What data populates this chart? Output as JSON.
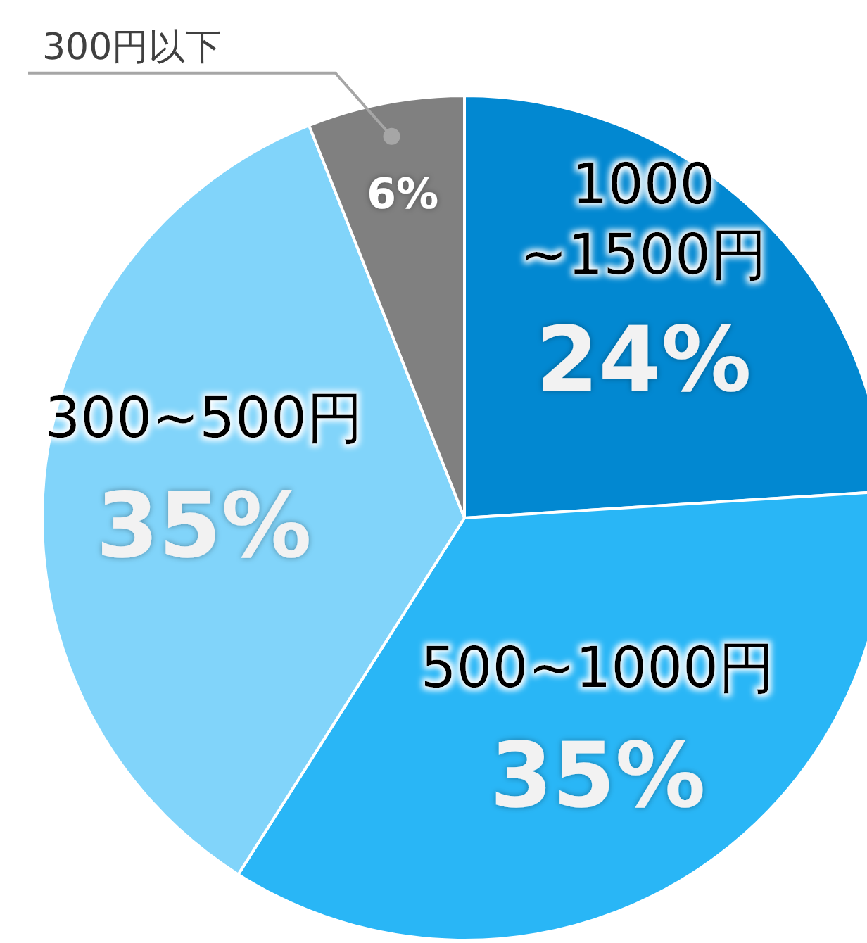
{
  "chart_data": {
    "type": "pie",
    "categories": [
      "1000\n~1500円",
      "500~1000円",
      "300~500円",
      "300円以下"
    ],
    "values": [
      24,
      35,
      35,
      6
    ],
    "value_labels": [
      "24%",
      "35%",
      "35%",
      "6%"
    ],
    "colors": [
      "#0288d1",
      "#29b6f6",
      "#81d4fa",
      "#808080"
    ]
  }
}
